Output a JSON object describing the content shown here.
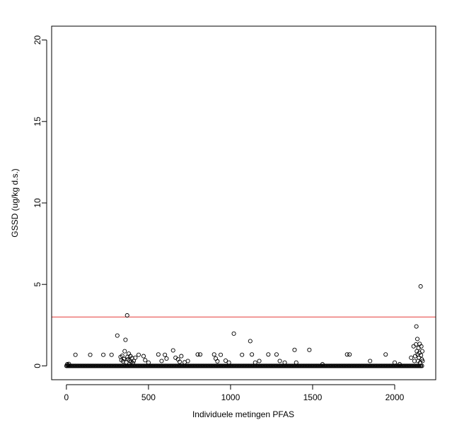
{
  "chart_data": {
    "type": "scatter",
    "title": "",
    "xlabel": "Individuele metingen PFAS",
    "ylabel": "GSSD (ug/kg d.s.)",
    "xlim": [
      -90,
      2250
    ],
    "ylim": [
      -0.85,
      20.85
    ],
    "x_ticks": [
      0,
      500,
      1000,
      1500,
      2000
    ],
    "y_ticks": [
      0,
      5,
      10,
      15,
      20
    ],
    "marker": "open-circle",
    "threshold_line": {
      "y": 3.0,
      "color": "#e8504f"
    },
    "baseline_points": {
      "x_start": 0,
      "x_end": 2170,
      "step": 6,
      "y": 0.0
    },
    "outliers": [
      [
        5,
        0.1
      ],
      [
        10,
        0.05
      ],
      [
        15,
        0.12
      ],
      [
        55,
        0.68
      ],
      [
        145,
        0.68
      ],
      [
        225,
        0.68
      ],
      [
        275,
        0.68
      ],
      [
        310,
        1.86
      ],
      [
        330,
        0.55
      ],
      [
        335,
        0.35
      ],
      [
        340,
        0.62
      ],
      [
        345,
        0.28
      ],
      [
        350,
        0.42
      ],
      [
        355,
        0.9
      ],
      [
        360,
        1.6
      ],
      [
        365,
        0.22
      ],
      [
        370,
        3.1
      ],
      [
        372,
        0.55
      ],
      [
        375,
        0.4
      ],
      [
        380,
        0.75
      ],
      [
        385,
        0.32
      ],
      [
        390,
        0.6
      ],
      [
        395,
        0.25
      ],
      [
        400,
        0.48
      ],
      [
        405,
        0.18
      ],
      [
        410,
        0.3
      ],
      [
        420,
        0.5
      ],
      [
        440,
        0.68
      ],
      [
        470,
        0.6
      ],
      [
        480,
        0.35
      ],
      [
        500,
        0.2
      ],
      [
        560,
        0.7
      ],
      [
        580,
        0.3
      ],
      [
        600,
        0.68
      ],
      [
        610,
        0.45
      ],
      [
        650,
        0.95
      ],
      [
        665,
        0.5
      ],
      [
        680,
        0.4
      ],
      [
        690,
        0.25
      ],
      [
        700,
        0.6
      ],
      [
        720,
        0.22
      ],
      [
        740,
        0.3
      ],
      [
        800,
        0.7
      ],
      [
        815,
        0.7
      ],
      [
        900,
        0.7
      ],
      [
        910,
        0.45
      ],
      [
        920,
        0.28
      ],
      [
        940,
        0.68
      ],
      [
        970,
        0.32
      ],
      [
        990,
        0.2
      ],
      [
        1020,
        1.98
      ],
      [
        1070,
        0.68
      ],
      [
        1120,
        1.52
      ],
      [
        1130,
        0.7
      ],
      [
        1150,
        0.2
      ],
      [
        1175,
        0.3
      ],
      [
        1230,
        0.7
      ],
      [
        1280,
        0.7
      ],
      [
        1300,
        0.3
      ],
      [
        1330,
        0.2
      ],
      [
        1390,
        0.98
      ],
      [
        1400,
        0.2
      ],
      [
        1480,
        0.98
      ],
      [
        1560,
        0.1
      ],
      [
        1710,
        0.7
      ],
      [
        1725,
        0.7
      ],
      [
        1850,
        0.3
      ],
      [
        1945,
        0.7
      ],
      [
        2000,
        0.2
      ],
      [
        2030,
        0.1
      ],
      [
        2100,
        0.5
      ],
      [
        2115,
        1.2
      ],
      [
        2120,
        0.3
      ],
      [
        2125,
        0.6
      ],
      [
        2130,
        1.32
      ],
      [
        2132,
        2.42
      ],
      [
        2135,
        0.9
      ],
      [
        2138,
        1.65
      ],
      [
        2140,
        0.7
      ],
      [
        2142,
        0.3
      ],
      [
        2145,
        1.1
      ],
      [
        2148,
        0.5
      ],
      [
        2150,
        0.8
      ],
      [
        2152,
        1.35
      ],
      [
        2155,
        0.2
      ],
      [
        2158,
        4.88
      ],
      [
        2160,
        0.65
      ],
      [
        2162,
        1.2
      ],
      [
        2165,
        0.4
      ],
      [
        2168,
        0.9
      ],
      [
        2170,
        0.3
      ]
    ]
  },
  "colors": {
    "points": "#000000",
    "threshold": "#e8504f",
    "background": "#ffffff"
  }
}
